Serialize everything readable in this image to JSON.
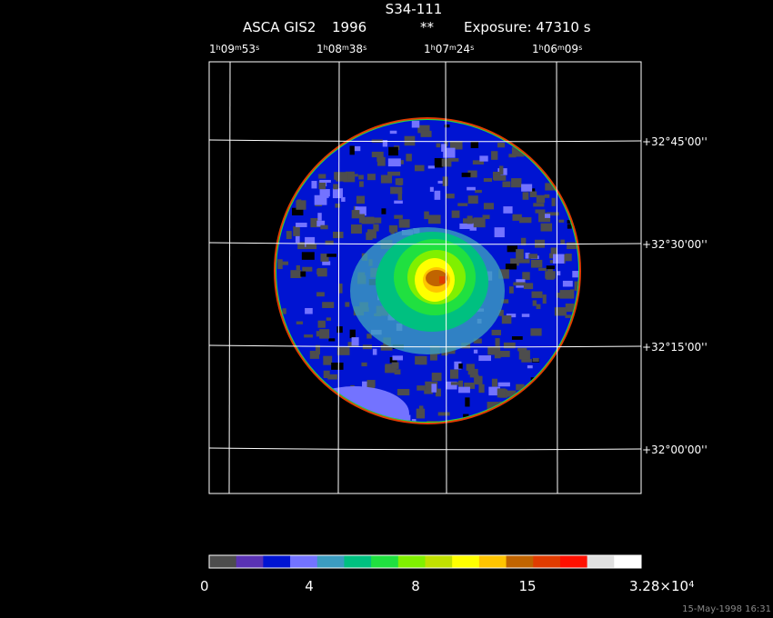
{
  "header": {
    "title": "S34-111",
    "instrument": "ASCA GIS2",
    "year": "1996",
    "flag": "**",
    "exposure": "Exposure: 47310 s"
  },
  "ra_labels": [
    [
      "1",
      "h",
      "09",
      "m",
      "53",
      "s"
    ],
    [
      "1",
      "h",
      "08",
      "m",
      "38",
      "s"
    ],
    [
      "1",
      "h",
      "07",
      "m",
      "24",
      "s"
    ],
    [
      "1",
      "h",
      "06",
      "m",
      "09",
      "s"
    ]
  ],
  "dec_labels": [
    "+32°45'00''",
    "+32°30'00''",
    "+32°15'00''",
    "+32°00'00''"
  ],
  "colorbar": {
    "colors": [
      "#4d4d4d",
      "#5a32b4",
      "#0014d2",
      "#7373ff",
      "#3c9cc0",
      "#00c080",
      "#20e040",
      "#80f000",
      "#c0e000",
      "#ffff00",
      "#ffc400",
      "#c06400",
      "#e03c00",
      "#ff1000",
      "#e0e0e0",
      "#ffffff"
    ],
    "labels": [
      "0",
      "4",
      "8",
      "15",
      [
        "3.28×10",
        "4"
      ]
    ]
  },
  "timestamp": "15-May-1998 16:31"
}
